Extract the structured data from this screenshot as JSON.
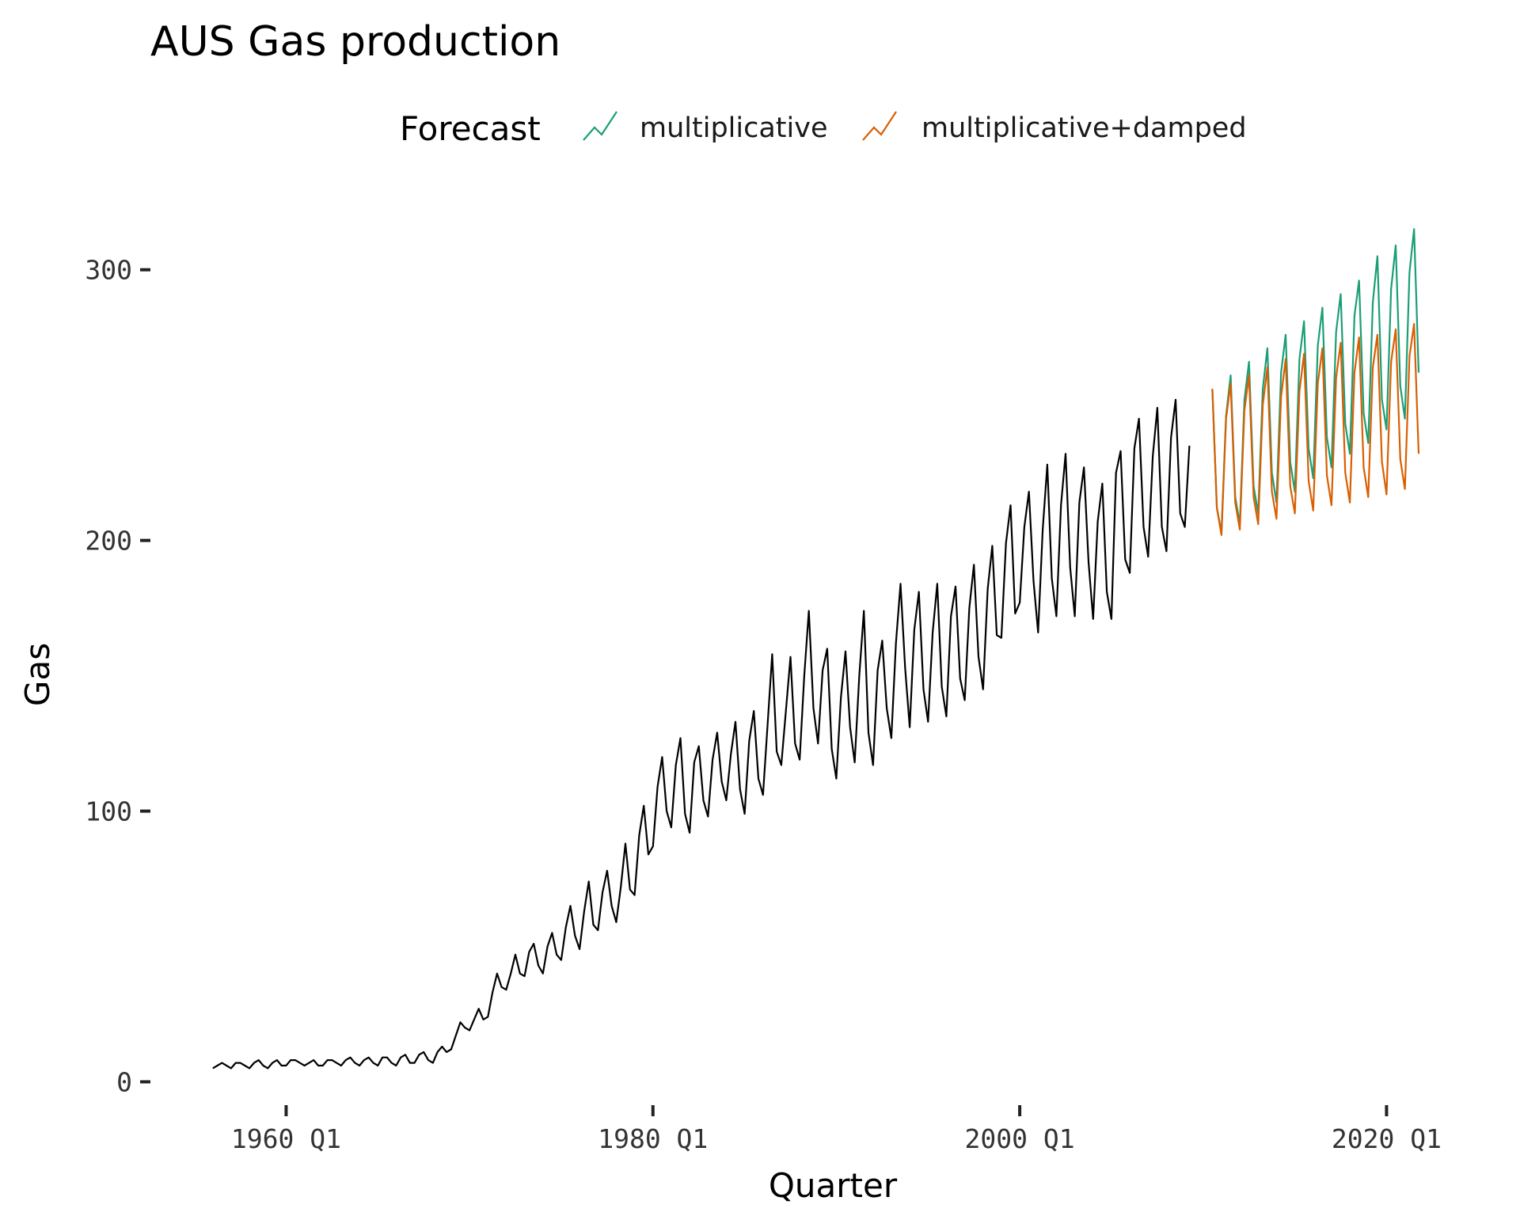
{
  "chart_data": {
    "type": "line",
    "title": "AUS Gas production",
    "xlabel": "Quarter",
    "ylabel": "Gas",
    "legend": {
      "title": "Forecast",
      "placement": "top",
      "entries": [
        "multiplicative",
        "multiplicative+damped"
      ]
    },
    "grid": false,
    "xlim": [
      1952.6,
      2024.6
    ],
    "ylim": [
      -6,
      328
    ],
    "x_ticks": [
      {
        "value": 1960,
        "label": "1960 Q1"
      },
      {
        "value": 1980,
        "label": "1980 Q1"
      },
      {
        "value": 2000,
        "label": "2000 Q1"
      },
      {
        "value": 2020,
        "label": "2020 Q1"
      }
    ],
    "y_ticks": [
      {
        "value": 0,
        "label": "0"
      },
      {
        "value": 100,
        "label": "100"
      },
      {
        "value": 200,
        "label": "200"
      },
      {
        "value": 300,
        "label": "300"
      }
    ],
    "x_units": "quarter as decimal year, Q1 = .00, Q2 = .25, Q3 = .50, Q4 = .75",
    "observed": {
      "name": "",
      "color": "#000000",
      "x_start": 1956.0,
      "x_step": 0.25,
      "values": [
        5,
        6,
        7,
        6,
        5,
        7,
        7,
        6,
        5,
        7,
        8,
        6,
        5,
        7,
        8,
        6,
        6,
        8,
        8,
        7,
        6,
        7,
        8,
        6,
        6,
        8,
        8,
        7,
        6,
        8,
        9,
        7,
        6,
        8,
        9,
        7,
        6,
        9,
        9,
        7,
        6,
        9,
        10,
        7,
        7,
        10,
        11,
        8,
        7,
        11,
        13,
        11,
        12,
        17,
        22,
        20,
        19,
        23,
        27,
        23,
        24,
        33,
        40,
        35,
        34,
        40,
        47,
        40,
        39,
        48,
        51,
        43,
        40,
        50,
        55,
        47,
        45,
        57,
        65,
        54,
        49,
        63,
        74,
        58,
        56,
        70,
        78,
        65,
        59,
        72,
        88,
        71,
        69,
        91,
        102,
        84,
        87,
        109,
        120,
        100,
        94,
        117,
        127,
        99,
        92,
        118,
        124,
        104,
        98,
        119,
        129,
        111,
        104,
        121,
        133,
        108,
        99,
        126,
        137,
        112,
        106,
        132,
        158,
        122,
        117,
        137,
        157,
        125,
        119,
        150,
        174,
        138,
        125,
        152,
        160,
        123,
        112,
        142,
        159,
        131,
        118,
        150,
        174,
        129,
        117,
        152,
        163,
        138,
        127,
        162,
        184,
        153,
        131,
        167,
        181,
        145,
        133,
        166,
        184,
        146,
        135,
        172,
        183,
        149,
        141,
        175,
        191,
        157,
        145,
        182,
        198,
        165,
        164,
        199,
        213,
        173,
        177,
        205,
        218,
        185,
        166,
        204,
        228,
        186,
        172,
        213,
        232,
        190,
        172,
        214,
        227,
        192,
        171,
        207,
        221,
        181,
        171,
        225,
        233,
        193,
        188,
        234,
        245,
        205,
        194,
        231,
        249,
        205,
        196,
        238,
        252,
        210,
        205,
        235
      ]
    },
    "series": [
      {
        "name": "multiplicative",
        "color": "#1b9e77",
        "x_start": 2010.5,
        "x_step": 0.25,
        "values": [
          256,
          212,
          203,
          246,
          261,
          216,
          206,
          252,
          266,
          220,
          210,
          256,
          271,
          225,
          214,
          262,
          276,
          229,
          218,
          267,
          281,
          234,
          223,
          272,
          286,
          238,
          227,
          277,
          291,
          243,
          232,
          283,
          296,
          247,
          236,
          288,
          305,
          252,
          241,
          293,
          309,
          257,
          245,
          299,
          315,
          262
        ]
      },
      {
        "name": "multiplicative+damped",
        "color": "#d95f02",
        "x_start": 2010.5,
        "x_step": 0.25,
        "values": [
          256,
          212,
          202,
          245,
          258,
          214,
          204,
          248,
          261,
          216,
          206,
          250,
          264,
          218,
          208,
          253,
          267,
          220,
          210,
          255,
          269,
          222,
          211,
          258,
          271,
          224,
          213,
          260,
          273,
          225,
          214,
          262,
          275,
          227,
          216,
          264,
          276,
          229,
          217,
          266,
          278,
          230,
          219,
          268,
          280,
          232
        ]
      }
    ]
  }
}
